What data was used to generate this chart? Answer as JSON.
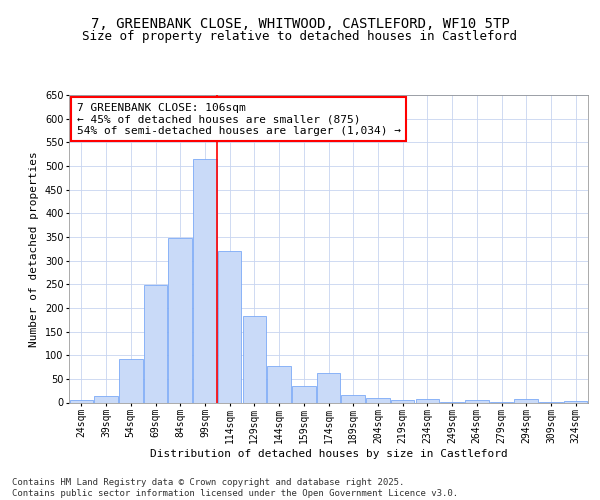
{
  "title_line1": "7, GREENBANK CLOSE, WHITWOOD, CASTLEFORD, WF10 5TP",
  "title_line2": "Size of property relative to detached houses in Castleford",
  "xlabel": "Distribution of detached houses by size in Castleford",
  "ylabel": "Number of detached properties",
  "bar_labels": [
    "24sqm",
    "39sqm",
    "54sqm",
    "69sqm",
    "84sqm",
    "99sqm",
    "114sqm",
    "129sqm",
    "144sqm",
    "159sqm",
    "174sqm",
    "189sqm",
    "204sqm",
    "219sqm",
    "234sqm",
    "249sqm",
    "264sqm",
    "279sqm",
    "294sqm",
    "309sqm",
    "324sqm"
  ],
  "bar_values": [
    5,
    13,
    93,
    248,
    347,
    515,
    320,
    182,
    78,
    35,
    63,
    15,
    10,
    6,
    8,
    2,
    5,
    2,
    7,
    2,
    3
  ],
  "bar_color": "#c9daf8",
  "bar_edge_color": "#7baaf7",
  "vline_x_index": 5.5,
  "vline_color": "red",
  "annotation_text": "7 GREENBANK CLOSE: 106sqm\n← 45% of detached houses are smaller (875)\n54% of semi-detached houses are larger (1,034) →",
  "annotation_box_color": "white",
  "annotation_box_edge": "red",
  "ylim": [
    0,
    650
  ],
  "background_color": "#ffffff",
  "grid_color": "#c8d4f0",
  "title_fontsize": 10,
  "subtitle_fontsize": 9,
  "axis_label_fontsize": 8,
  "tick_fontsize": 7,
  "annotation_fontsize": 8,
  "footer_fontsize": 6.5,
  "footer_text": "Contains HM Land Registry data © Crown copyright and database right 2025.\nContains public sector information licensed under the Open Government Licence v3.0."
}
